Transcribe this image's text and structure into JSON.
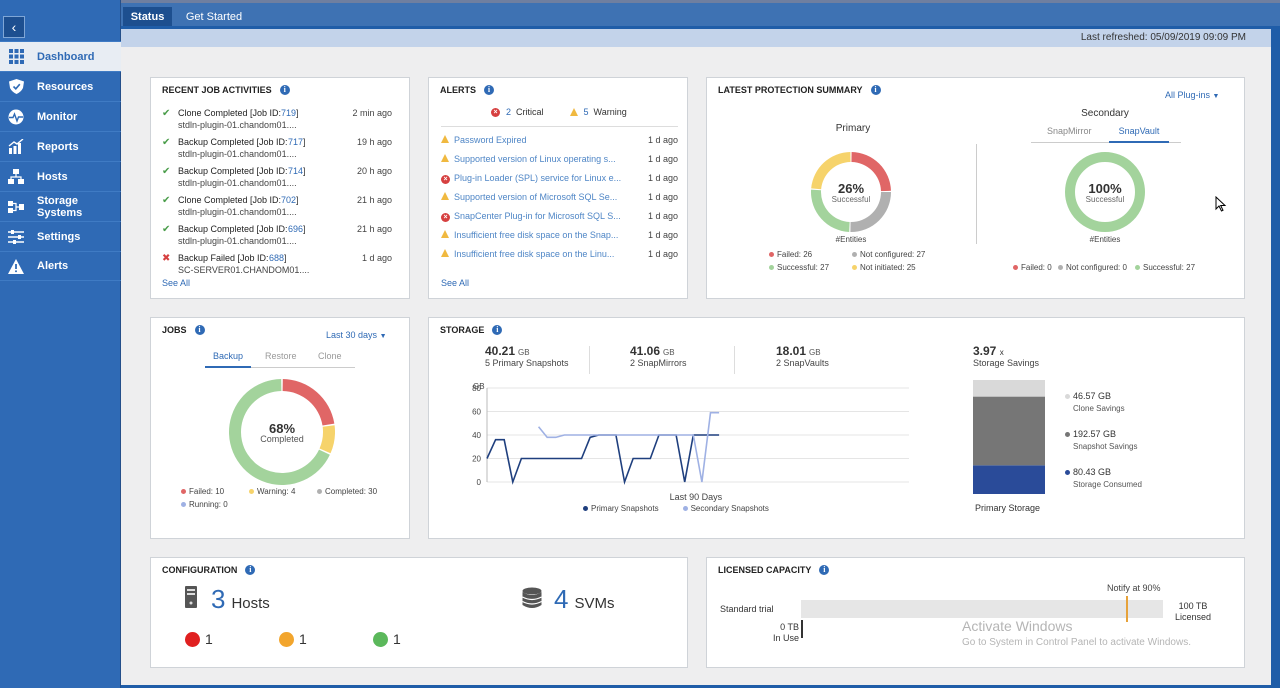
{
  "topbar": {
    "tabs": [
      "Status",
      "Get Started"
    ]
  },
  "refresh": {
    "text": "Last refreshed: 05/09/2019 09:09 PM"
  },
  "sidebar": {
    "collapse": "‹",
    "items": [
      {
        "label": "Dashboard",
        "icon": "grid-icon"
      },
      {
        "label": "Resources",
        "icon": "shield-icon"
      },
      {
        "label": "Monitor",
        "icon": "pulse-icon"
      },
      {
        "label": "Reports",
        "icon": "chart-icon"
      },
      {
        "label": "Hosts",
        "icon": "hosts-icon"
      },
      {
        "label": "Storage Systems",
        "icon": "storage-icon"
      },
      {
        "label": "Settings",
        "icon": "settings-icon"
      },
      {
        "label": "Alerts",
        "icon": "alert-icon"
      }
    ]
  },
  "jobs_recent": {
    "title": "RECENT JOB ACTIVITIES",
    "see_all": "See All",
    "items": [
      {
        "status": "ok",
        "t1": "Clone Completed [Job ID: ",
        "id": "719",
        "t1b": " ]",
        "t2": "stdln-plugin-01.chandom01....",
        "time": "2 min ago"
      },
      {
        "status": "ok",
        "t1": "Backup Completed [Job ID: ",
        "id": "717",
        "t1b": " ]",
        "t2": "stdln-plugin-01.chandom01....",
        "time": "19 h ago"
      },
      {
        "status": "ok",
        "t1": "Backup Completed [Job ID: ",
        "id": "714",
        "t1b": " ]",
        "t2": "stdln-plugin-01.chandom01....",
        "time": "20 h ago"
      },
      {
        "status": "ok",
        "t1": "Clone Completed [Job ID: ",
        "id": "702",
        "t1b": " ]",
        "t2": "stdln-plugin-01.chandom01....",
        "time": "21 h ago"
      },
      {
        "status": "ok",
        "t1": "Backup Completed [Job ID: ",
        "id": "696",
        "t1b": " ]",
        "t2": "stdln-plugin-01.chandom01....",
        "time": "21 h ago"
      },
      {
        "status": "fail",
        "t1": "Backup Failed [Job ID: ",
        "id": "688",
        "t1b": " ]",
        "t2": "SC-SERVER01.CHANDOM01....",
        "time": "1 d ago"
      }
    ]
  },
  "alerts": {
    "title": "ALERTS",
    "critical_count": "2",
    "critical_label": "Critical",
    "warning_count": "5",
    "warning_label": "Warning",
    "see_all": "See All",
    "items": [
      {
        "type": "warn",
        "text": "Password Expired",
        "time": "1 d ago"
      },
      {
        "type": "warn",
        "text": "Supported version of Linux operating s...",
        "time": "1 d ago"
      },
      {
        "type": "crit",
        "text": "Plug-in Loader (SPL) service for Linux e...",
        "time": "1 d ago"
      },
      {
        "type": "warn",
        "text": "Supported version of Microsoft SQL Se...",
        "time": "1 d ago"
      },
      {
        "type": "crit",
        "text": "SnapCenter Plug-in for Microsoft SQL S...",
        "time": "1 d ago"
      },
      {
        "type": "warn",
        "text": "Insufficient free disk space on the Snap...",
        "time": "1 d ago"
      },
      {
        "type": "warn",
        "text": "Insufficient free disk space on the Linu...",
        "time": "1 d ago"
      }
    ]
  },
  "protection": {
    "title": "LATEST PROTECTION SUMMARY",
    "plugins": "All Plug-ins",
    "primary": {
      "label": "Primary",
      "pct": "26%",
      "sub": "Successful",
      "entities": "#Entities",
      "legend": [
        "Failed: 26",
        "Not configured: 27",
        "Successful: 27",
        "Not initiated: 25"
      ],
      "chart_data": {
        "type": "pie",
        "categories": [
          "Failed",
          "Not configured",
          "Successful",
          "Not initiated"
        ],
        "values": [
          26,
          27,
          27,
          25
        ]
      }
    },
    "secondary": {
      "label": "Secondary",
      "tabs": [
        "SnapMirror",
        "SnapVault"
      ],
      "pct": "100%",
      "sub": "Successful",
      "entities": "#Entities",
      "legend": [
        "Failed: 0",
        "Not configured: 0",
        "Successful: 27"
      ],
      "chart_data": {
        "type": "pie",
        "categories": [
          "Failed",
          "Not configured",
          "Successful"
        ],
        "values": [
          0,
          0,
          27
        ]
      }
    }
  },
  "jobs": {
    "title": "JOBS",
    "range": "Last 30 days",
    "tabs": [
      "Backup",
      "Restore",
      "Clone"
    ],
    "pct": "68%",
    "sub": "Completed",
    "legend": [
      "Failed: 10",
      "Warning: 4",
      "Completed: 30",
      "Running: 0"
    ],
    "chart_data": {
      "type": "pie",
      "categories": [
        "Failed",
        "Warning",
        "Completed",
        "Running"
      ],
      "values": [
        10,
        4,
        30,
        0
      ]
    }
  },
  "storage": {
    "title": "STORAGE",
    "stats": [
      {
        "value": "40.21",
        "unit": "GB",
        "label": "5 Primary Snapshots"
      },
      {
        "value": "41.06",
        "unit": "GB",
        "label": "2 SnapMirrors"
      },
      {
        "value": "18.01",
        "unit": "GB",
        "label": "2 SnapVaults"
      }
    ],
    "savings": {
      "value": "3.97",
      "unit": "x",
      "label": "Storage Savings"
    },
    "bar_label": "Primary Storage",
    "bar_legend": [
      {
        "value": "46.57 GB",
        "label": "Clone Savings"
      },
      {
        "value": "192.57 GB",
        "label": "Snapshot Savings"
      },
      {
        "value": "80.43 GB",
        "label": "Storage Consumed"
      }
    ],
    "chart_data": [
      {
        "type": "line",
        "title": "",
        "ylabel": "GB",
        "xlabel": "Last 90 Days",
        "ylim": [
          0,
          80
        ],
        "yticks": [
          0,
          20,
          40,
          60,
          80
        ],
        "series": [
          {
            "name": "Primary Snapshots",
            "x": [
              0,
              1,
              2,
              3,
              4,
              5,
              6,
              7,
              8,
              9,
              10,
              11,
              12,
              13,
              14,
              15,
              16,
              17,
              18,
              19,
              20,
              21,
              22,
              23,
              24,
              25,
              26,
              27
            ],
            "y": [
              20,
              36,
              36,
              0,
              20,
              20,
              20,
              20,
              20,
              20,
              20,
              20,
              38,
              40,
              40,
              40,
              0,
              20,
              20,
              20,
              40,
              40,
              40,
              0,
              40,
              40,
              40,
              40
            ]
          },
          {
            "name": "Secondary Snapshots",
            "x": [
              0,
              1,
              2,
              3,
              4,
              5,
              6,
              7,
              8,
              9,
              10,
              11,
              12,
              13,
              14,
              15,
              16,
              17,
              18,
              19,
              20,
              21,
              22,
              23,
              24,
              25,
              26,
              27
            ],
            "y": [
              null,
              null,
              null,
              null,
              null,
              null,
              47,
              38,
              38,
              40,
              40,
              40,
              40,
              40,
              40,
              40,
              40,
              40,
              40,
              40,
              40,
              40,
              40,
              40,
              40,
              0,
              59,
              59
            ]
          }
        ]
      },
      {
        "type": "bar",
        "title": "",
        "categories": [
          "Primary Storage"
        ],
        "series": [
          {
            "name": "Storage Consumed",
            "values": [
              80.43
            ]
          },
          {
            "name": "Snapshot Savings",
            "values": [
              192.57
            ]
          },
          {
            "name": "Clone Savings",
            "values": [
              46.57
            ]
          }
        ]
      }
    ]
  },
  "config": {
    "title": "CONFIGURATION",
    "hosts_count": "3",
    "hosts_label": "Hosts",
    "svms_count": "4",
    "svms_label": "SVMs",
    "status": [
      "1",
      "1",
      "1"
    ]
  },
  "licensed": {
    "title": "LICENSED CAPACITY",
    "notify": "Notify at 90%",
    "trial": "Standard trial",
    "max": "100 TB",
    "max_sub": "Licensed",
    "used": "0 TB",
    "used_sub": "In Use",
    "notify_fraction": 0.9,
    "used_fraction": 0
  },
  "watermark": {
    "line1": "Activate Windows",
    "line2": "Go to System in Control Panel to activate Windows."
  },
  "colors": {
    "accent": "#2f6ab5",
    "failed": "#e06666",
    "warning": "#f6d36b",
    "success": "#a3d39c",
    "notconfig": "#b0b0b0",
    "primary_line": "#1f3f7e",
    "secondary_line": "#9fb1e4",
    "consumed": "#2a4b99",
    "snapsav": "#767676",
    "clonesav": "#d9d9d9"
  }
}
